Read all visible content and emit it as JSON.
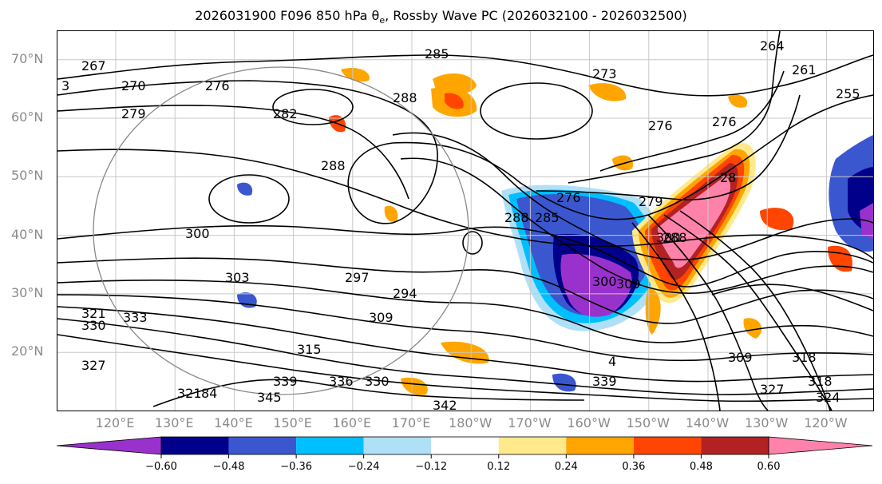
{
  "title": "2026031900 F096 850 hPa θ_e, Rossby Wave PC (2026032100 - 2026032500)",
  "map": {
    "lat_labels": [
      {
        "text": "70°N",
        "lat": 70
      },
      {
        "text": "60°N",
        "lat": 60
      },
      {
        "text": "50°N",
        "lat": 50
      },
      {
        "text": "40°N",
        "lat": 40
      },
      {
        "text": "30°N",
        "lat": 30
      },
      {
        "text": "20°N",
        "lat": 20
      }
    ],
    "lon_labels": [
      "120°E",
      "130°E",
      "140°E",
      "150°E",
      "160°E",
      "170°E",
      "180°W",
      "170°W",
      "160°W",
      "150°W",
      "140°W",
      "130°W",
      "120°W"
    ],
    "contour_labels": [
      "285",
      "270",
      "267",
      "276",
      "279",
      "288",
      "3",
      "282",
      "288",
      "276",
      "273",
      "264",
      "261",
      "28",
      "255",
      "276",
      "276",
      "279",
      "285",
      "288",
      "300",
      "309",
      "300",
      "297",
      "303",
      "294",
      "309",
      "315",
      "321",
      "330",
      "333",
      "327",
      "321",
      "84",
      "339",
      "336",
      "345",
      "342",
      "339",
      "330",
      "4",
      "309",
      "318",
      "327",
      "318",
      "324",
      "28",
      "300",
      "288"
    ],
    "gridlines": true
  },
  "colorbar": {
    "ticks": [
      "−0.60",
      "−0.48",
      "−0.36",
      "−0.24",
      "−0.12",
      "0.12",
      "0.24",
      "0.36",
      "0.48",
      "0.60"
    ],
    "colors": [
      "#9932cc",
      "#00008b",
      "#3a57d0",
      "#00bfff",
      "#afe0f7",
      "#ffffff",
      "#ffe98a",
      "#ffa500",
      "#ff4500",
      "#b22222",
      "#ff82ab"
    ],
    "extend": "both"
  }
}
